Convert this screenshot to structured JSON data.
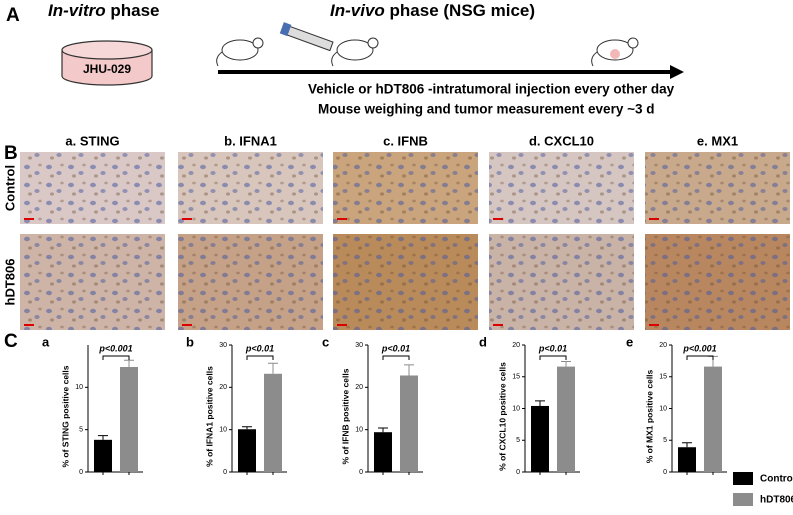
{
  "panel_a": {
    "label": "A",
    "in_vitro": {
      "italic": "In-vitro",
      "rest": "phase"
    },
    "cell_line": "JHU-029",
    "in_vivo": {
      "italic": "In-vivo",
      "rest": "phase (NSG mice)"
    },
    "notes": [
      "Vehicle or hDT806 -intratumoral injection every other day",
      "Mouse weighing and tumor measurement every ~3 d"
    ]
  },
  "panel_b": {
    "label": "B",
    "columns": [
      "a. STING",
      "b. IFNA1",
      "c. IFNB",
      "d. CXCL10",
      "e. MX1"
    ],
    "rows": [
      "Control",
      "hDT806"
    ]
  },
  "panel_c": {
    "label": "C",
    "legend": [
      {
        "name": "Control",
        "color": "#000000"
      },
      {
        "name": "hDT806",
        "color": "#8c8c8c"
      }
    ]
  },
  "chart_data": [
    {
      "type": "bar",
      "label": "a",
      "ylabel": "% of  STING positive cells",
      "annotation": "p<0.001",
      "values": [
        3.8,
        12.4
      ],
      "errors": [
        0.5,
        0.8
      ],
      "ylim": [
        0,
        15
      ],
      "yticks": [
        0,
        5,
        10
      ]
    },
    {
      "type": "bar",
      "label": "b",
      "ylabel": "% of IFNA1 positive cells",
      "annotation": "p<0.01",
      "values": [
        10.1,
        23.2
      ],
      "errors": [
        0.6,
        2.5
      ],
      "ylim": [
        0,
        30
      ],
      "yticks": [
        0,
        10,
        20,
        30
      ]
    },
    {
      "type": "bar",
      "label": "c",
      "ylabel": "% of IFNB positive cells",
      "annotation": "p<0.01",
      "values": [
        9.4,
        22.8
      ],
      "errors": [
        1.0,
        2.5
      ],
      "ylim": [
        0,
        30
      ],
      "yticks": [
        0,
        10,
        20,
        30
      ]
    },
    {
      "type": "bar",
      "label": "d",
      "ylabel": "% of CXCL10 positive cells",
      "annotation": "p<0.01",
      "values": [
        10.4,
        16.6
      ],
      "errors": [
        0.8,
        0.8
      ],
      "ylim": [
        0,
        20
      ],
      "yticks": [
        0,
        5,
        10,
        15,
        20
      ]
    },
    {
      "type": "bar",
      "label": "e",
      "ylabel": "% of MX1 positive cells",
      "annotation": "p<0.001",
      "values": [
        3.9,
        16.6
      ],
      "errors": [
        0.7,
        1.6
      ],
      "ylim": [
        0,
        20
      ],
      "yticks": [
        0,
        5,
        10,
        15,
        20
      ]
    }
  ]
}
